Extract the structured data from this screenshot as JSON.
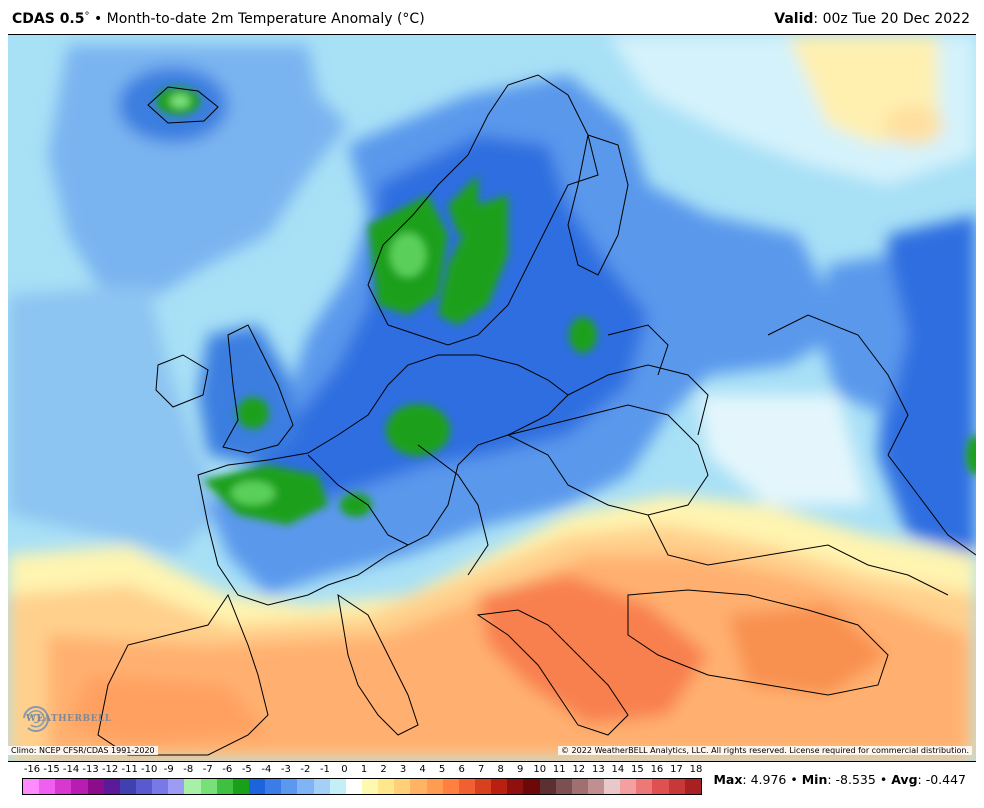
{
  "header": {
    "model": "CDAS 0.5",
    "degree": "°",
    "bullet": "•",
    "title": "Month-to-date 2m Temperature Anomaly (°C)",
    "valid_label": "Valid",
    "valid_value": ": 00z Tue 20 Dec 2022"
  },
  "footer": {
    "climo": "Climo: NCEP CFSR/CDAS 1991-2020",
    "copyright": "© 2022 WeatherBELL Analytics, LLC. All rights reserved. License required for commercial distribution.",
    "logo_text": "WEATHERBELL"
  },
  "colorbar": {
    "labels": [
      "-16",
      "-15",
      "-14",
      "-13",
      "-12",
      "-11",
      "-10",
      "-9",
      "-8",
      "-7",
      "-6",
      "-5",
      "-4",
      "-3",
      "-2",
      "-1",
      "0",
      "1",
      "2",
      "3",
      "4",
      "5",
      "6",
      "7",
      "8",
      "9",
      "10",
      "11",
      "12",
      "13",
      "14",
      "15",
      "16",
      "17",
      "18"
    ],
    "colors": [
      "#ff8cff",
      "#f060f0",
      "#d838d0",
      "#b81cb0",
      "#8c0c8c",
      "#5a1a9a",
      "#4040b0",
      "#5a5ad0",
      "#7878e8",
      "#9c9cf4",
      "#a8f0a8",
      "#78e078",
      "#40c040",
      "#18a018",
      "#1c64dc",
      "#3c7ce8",
      "#5c98f0",
      "#80b4f4",
      "#a4d0f8",
      "#c4eef8",
      "#ffffff",
      "#fff8b0",
      "#ffe88c",
      "#ffd078",
      "#ffb464",
      "#ff9c50",
      "#ff8040",
      "#f06030",
      "#d84020",
      "#b82010",
      "#901010",
      "#6c0808",
      "#5c3030",
      "#7c5050",
      "#a07070",
      "#c09090",
      "#e8c8c8",
      "#f4a0a0",
      "#ec7878",
      "#e05050",
      "#c83838",
      "#a82020"
    ]
  },
  "stats": {
    "max_label": "Max",
    "max_value": ": 4.976",
    "min_label": "Min",
    "min_value": ": -8.535",
    "avg_label": "Avg",
    "avg_value": ": -0.447",
    "sep": "•"
  },
  "map": {
    "region": "Europe",
    "palette": {
      "deep_blue": "#2a6ad8",
      "mid_blue": "#5a98ec",
      "light_blue": "#88c4f4",
      "pale_blue": "#b8e8f8",
      "green": "#1ea01e",
      "light_green": "#7ae07a",
      "pale_yellow": "#fff4b0",
      "light_orange": "#ffc478",
      "orange": "#ffa060",
      "dark_orange": "#f07040"
    }
  }
}
